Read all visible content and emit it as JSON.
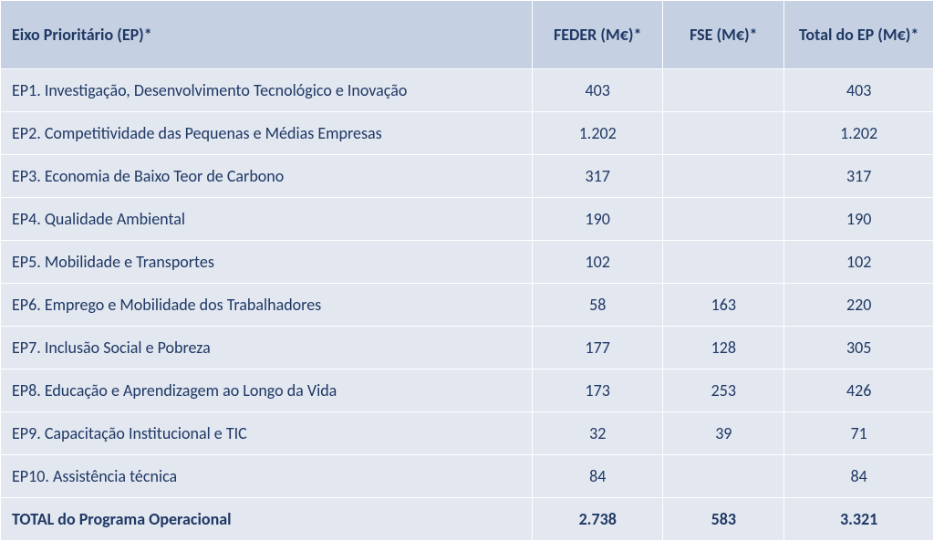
{
  "table": {
    "columns": [
      {
        "label": "Eixo Prioritário (EP)*",
        "align": "left"
      },
      {
        "label": "FEDER (M€)*",
        "align": "center"
      },
      {
        "label": "FSE (M€)*",
        "align": "center"
      },
      {
        "label": "Total do EP (M€)*",
        "align": "center"
      }
    ],
    "rows": [
      {
        "ep": "EP1. Investigação, Desenvolvimento Tecnológico e Inovação",
        "feder": "403",
        "fse": "",
        "total": "403"
      },
      {
        "ep": "EP2. Competitividade das Pequenas e Médias Empresas",
        "feder": "1.202",
        "fse": "",
        "total": "1.202"
      },
      {
        "ep": "EP3. Economia de Baixo Teor de Carbono",
        "feder": "317",
        "fse": "",
        "total": "317"
      },
      {
        "ep": "EP4. Qualidade Ambiental",
        "feder": "190",
        "fse": "",
        "total": "190"
      },
      {
        "ep": "EP5. Mobilidade e Transportes",
        "feder": "102",
        "fse": "",
        "total": "102"
      },
      {
        "ep": "EP6. Emprego e Mobilidade dos Trabalhadores",
        "feder": "58",
        "fse": "163",
        "total": "220"
      },
      {
        "ep": "EP7. Inclusão Social e Pobreza",
        "feder": "177",
        "fse": "128",
        "total": "305"
      },
      {
        "ep": "EP8. Educação e Aprendizagem ao Longo da Vida",
        "feder": "173",
        "fse": "253",
        "total": "426"
      },
      {
        "ep": "EP9. Capacitação Institucional e TIC",
        "feder": "32",
        "fse": "39",
        "total": "71"
      },
      {
        "ep": "EP10. Assistência técnica",
        "feder": "84",
        "fse": "",
        "total": "84"
      }
    ],
    "totalRow": {
      "label": "TOTAL do Programa Operacional",
      "feder": "2.738",
      "fse": "583",
      "total": "3.321"
    },
    "styling": {
      "header_bg": "#c5d0e2",
      "row_bg": "#e2e7f0",
      "text_color": "#1f3864",
      "border_color": "#ffffff",
      "font_family": "Segoe UI / Calibri",
      "header_fontsize_pt": 14,
      "body_fontsize_pt": 14,
      "column_widths_pct": [
        57,
        14,
        13,
        16
      ]
    }
  }
}
